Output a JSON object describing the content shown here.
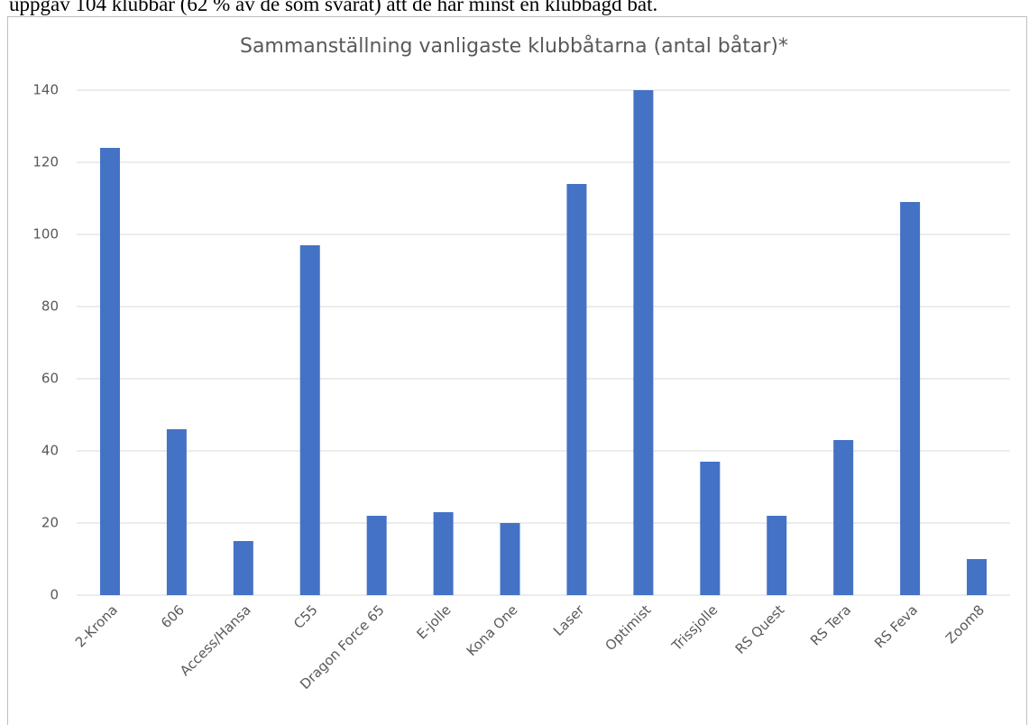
{
  "caption": "uppgav 104 klubbar (62 % av de som svarat) att de har minst en klubbägd båt.",
  "chart_data": {
    "type": "bar",
    "title": "Sammanställning vanligaste klubbåtarna (antal båtar)*",
    "categories": [
      "2-Krona",
      "606",
      "Access/Hansa",
      "C55",
      "Dragon Force 65",
      "E-jolle",
      "Kona One",
      "Laser",
      "Optimist",
      "Trissjolle",
      "RS Quest",
      "RS Tera",
      "RS Feva",
      "Zoom8"
    ],
    "values": [
      124,
      46,
      15,
      97,
      22,
      23,
      20,
      114,
      140,
      37,
      22,
      43,
      109,
      10
    ],
    "color": "#4472c4",
    "ylim": [
      0,
      140
    ],
    "yticks": [
      0,
      20,
      40,
      60,
      80,
      100,
      120,
      140
    ],
    "grid": true
  }
}
